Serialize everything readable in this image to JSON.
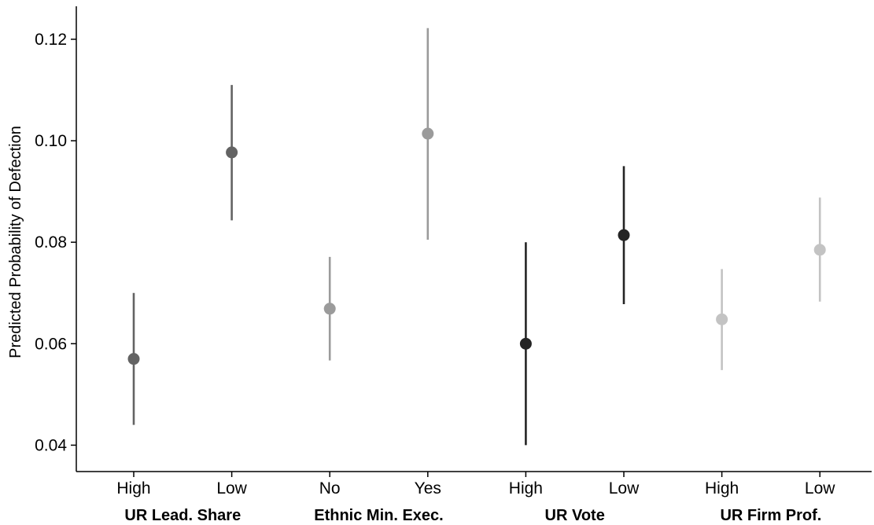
{
  "chart_data": {
    "type": "scatter",
    "subtype": "point-range",
    "title": "",
    "xlabel": "",
    "ylabel": "Predicted Probability of Defection",
    "ylim": [
      0.0348,
      0.1265
    ],
    "yticks": [
      "0.04",
      "0.06",
      "0.08",
      "0.10",
      "0.12"
    ],
    "grid": false,
    "legend": "none",
    "groups": [
      {
        "name": "UR Lead. Share",
        "color": "#636363",
        "points": [
          {
            "category": "High",
            "estimate": 0.057,
            "lower": 0.044,
            "upper": 0.07
          },
          {
            "category": "Low",
            "estimate": 0.0977,
            "lower": 0.0843,
            "upper": 0.111
          }
        ]
      },
      {
        "name": "Ethnic Min. Exec.",
        "color": "#9b9b9b",
        "points": [
          {
            "category": "No",
            "estimate": 0.0669,
            "lower": 0.0567,
            "upper": 0.0771
          },
          {
            "category": "Yes",
            "estimate": 0.1014,
            "lower": 0.0805,
            "upper": 0.1222
          }
        ]
      },
      {
        "name": "UR Vote",
        "color": "#242424",
        "points": [
          {
            "category": "High",
            "estimate": 0.06,
            "lower": 0.04,
            "upper": 0.08
          },
          {
            "category": "Low",
            "estimate": 0.0814,
            "lower": 0.0678,
            "upper": 0.095
          }
        ]
      },
      {
        "name": "UR Firm Prof.",
        "color": "#c3c3c3",
        "points": [
          {
            "category": "High",
            "estimate": 0.0648,
            "lower": 0.0548,
            "upper": 0.0747
          },
          {
            "category": "Low",
            "estimate": 0.0785,
            "lower": 0.0683,
            "upper": 0.0888
          }
        ]
      }
    ]
  }
}
